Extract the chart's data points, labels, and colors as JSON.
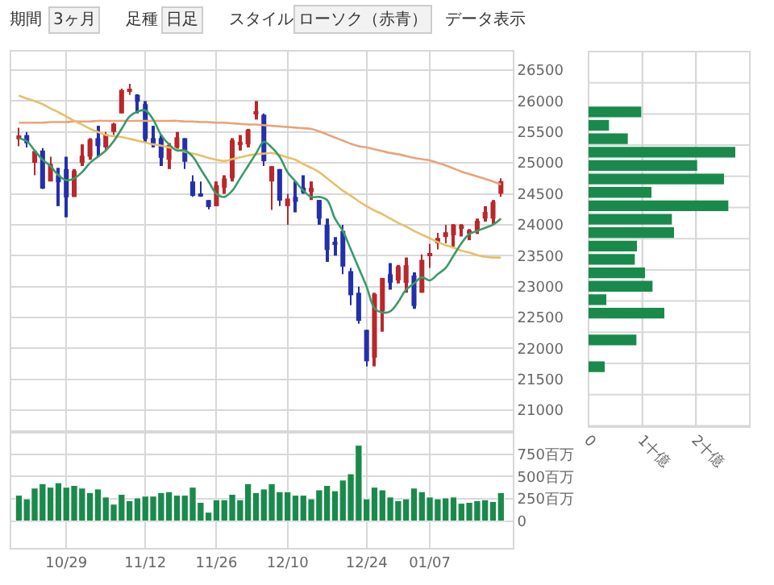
{
  "chart_data": [
    {
      "type": "candlestick",
      "annotations": [
        "期間",
        "3ヶ月",
        "足種",
        "日足",
        "スタイル",
        "ローソク（赤青）",
        "データ表示"
      ],
      "categories": [
        null,
        null,
        null,
        null,
        null,
        null,
        null,
        null,
        null,
        null,
        null,
        null,
        null,
        null,
        null,
        null,
        null,
        null,
        null,
        null,
        null,
        null,
        null,
        null,
        null,
        null,
        null,
        null,
        null,
        null,
        null,
        null,
        null,
        null,
        null,
        null,
        null,
        null,
        null,
        null,
        null,
        null,
        null,
        null,
        null,
        null,
        null,
        null,
        null,
        null,
        null,
        null,
        null,
        null,
        null,
        null,
        null,
        null,
        null,
        null,
        null,
        null
      ],
      "ylim": [
        20650,
        26800
      ],
      "yticks": [
        21000,
        21500,
        22000,
        22500,
        23000,
        23500,
        24000,
        24500,
        25000,
        25500,
        26000,
        26500
      ],
      "grid": true,
      "tick_labels": "y",
      "ohlc": [
        [
          25380,
          25570,
          25270,
          25444
        ],
        [
          25450,
          25500,
          25250,
          25317
        ],
        [
          25000,
          25200,
          24800,
          25191
        ],
        [
          25200,
          25240,
          24580,
          24583
        ],
        [
          24700,
          25100,
          24700,
          24985
        ],
        [
          24800,
          24920,
          24300,
          24688
        ],
        [
          24900,
          25100,
          24120,
          24443
        ],
        [
          24450,
          24900,
          24450,
          24874
        ],
        [
          25000,
          25300,
          24950,
          25116
        ],
        [
          25100,
          25400,
          25050,
          25380
        ],
        [
          25400,
          25600,
          25100,
          25271
        ],
        [
          25250,
          25500,
          25200,
          25462
        ],
        [
          25500,
          25650,
          25450,
          25636
        ],
        [
          25800,
          26200,
          25800,
          26181
        ],
        [
          26150,
          26280,
          26100,
          26191
        ],
        [
          26100,
          26110,
          25800,
          25989
        ],
        [
          25950,
          26000,
          25330,
          25387
        ],
        [
          25400,
          25600,
          25250,
          25286
        ],
        [
          25400,
          25450,
          24950,
          25081
        ],
        [
          25050,
          25320,
          24900,
          25290
        ],
        [
          25250,
          25500,
          25200,
          25413
        ],
        [
          25400,
          25400,
          24900,
          25018
        ],
        [
          24700,
          24800,
          24450,
          24466
        ],
        [
          24500,
          24700,
          24450,
          24464
        ],
        [
          24400,
          24400,
          24250,
          24286
        ],
        [
          24300,
          24700,
          24300,
          24640
        ],
        [
          24600,
          24800,
          24500,
          24749
        ],
        [
          24750,
          25400,
          24700,
          25366
        ],
        [
          25300,
          25450,
          25200,
          25339
        ],
        [
          25300,
          25550,
          25250,
          25538
        ],
        [
          25800,
          26000,
          25700,
          25826
        ],
        [
          25780,
          25800,
          24950,
          25027
        ],
        [
          24700,
          24950,
          24240,
          24947
        ],
        [
          24900,
          24900,
          24300,
          24389
        ],
        [
          24300,
          24500,
          24000,
          24423
        ],
        [
          24450,
          24700,
          24200,
          24370
        ],
        [
          24600,
          24800,
          24500,
          24527
        ],
        [
          24550,
          24700,
          24400,
          24597
        ],
        [
          24400,
          24400,
          24000,
          24100
        ],
        [
          24000,
          24100,
          23400,
          23592
        ],
        [
          23700,
          23800,
          23500,
          23675
        ],
        [
          23900,
          24000,
          23200,
          23323
        ],
        [
          23250,
          23300,
          22700,
          22859
        ],
        [
          22900,
          23000,
          22400,
          22445
        ],
        [
          22300,
          22300,
          21710,
          21792
        ],
        [
          21850,
          22900,
          21710,
          22878
        ],
        [
          22600,
          23140,
          22270,
          23138
        ],
        [
          23200,
          23380,
          22950,
          23062
        ],
        [
          23100,
          23350,
          23050,
          23327
        ],
        [
          23060,
          23470,
          22900,
          23346
        ],
        [
          23180,
          23230,
          22640,
          22686
        ],
        [
          22900,
          23520,
          22900,
          23433
        ],
        [
          23500,
          23690,
          23300,
          23531
        ],
        [
          23700,
          23870,
          23600,
          23787
        ],
        [
          23800,
          24000,
          23700,
          23879
        ],
        [
          23830,
          24010,
          23630,
          24001
        ],
        [
          23950,
          24010,
          23810,
          23996
        ],
        [
          23870,
          23930,
          23750,
          23910
        ],
        [
          23900,
          24100,
          23850,
          24065
        ],
        [
          24100,
          24300,
          24050,
          24207
        ],
        [
          24100,
          24400,
          24000,
          24370
        ],
        [
          24500,
          24750,
          24450,
          24706
        ]
      ],
      "colors": [
        "#b8282c",
        "#2430a8",
        "#b8282c",
        "#2430a8",
        "#b8282c",
        "#2430a8",
        "#2430a8",
        "#b8282c",
        "#b8282c",
        "#b8282c",
        "#2430a8",
        "#b8282c",
        "#b8282c",
        "#b8282c",
        "#b8282c",
        "#2430a8",
        "#2430a8",
        "#2430a8",
        "#2430a8",
        "#b8282c",
        "#b8282c",
        "#2430a8",
        "#2430a8",
        "#2430a8",
        "#2430a8",
        "#b8282c",
        "#b8282c",
        "#b8282c",
        "#b8282c",
        "#b8282c",
        "#b8282c",
        "#2430a8",
        "#b8282c",
        "#2430a8",
        "#b8282c",
        "#2430a8",
        "#2430a8",
        "#b8282c",
        "#2430a8",
        "#2430a8",
        "#2430a8",
        "#2430a8",
        "#2430a8",
        "#2430a8",
        "#2430a8",
        "#b8282c",
        "#b8282c",
        "#2430a8",
        "#b8282c",
        "#b8282c",
        "#2430a8",
        "#b8282c",
        "#b8282c",
        "#b8282c",
        "#b8282c",
        "#b8282c",
        "#b8282c",
        "#b8282c",
        "#b8282c",
        "#b8282c",
        "#b8282c",
        "#b8282c"
      ],
      "series": [
        {
          "type": "line",
          "color": "#e8a47a",
          "values": [
            25650,
            25650,
            25650,
            25650,
            25660,
            25660,
            25660,
            25670,
            25670,
            25670,
            25680,
            25680,
            25680,
            25680,
            25680,
            25680,
            25680,
            25680,
            25680,
            25680,
            25680,
            25670,
            25670,
            25660,
            25660,
            25650,
            25650,
            25640,
            25630,
            25620,
            25620,
            25610,
            25600,
            25590,
            25580,
            25570,
            25560,
            25550,
            25510,
            25460,
            25410,
            25360,
            25310,
            25270,
            25250,
            25220,
            25190,
            25160,
            25140,
            25110,
            25080,
            25060,
            25040,
            25000,
            24960,
            24910,
            24860,
            24820,
            24780,
            24740,
            24700,
            24650
          ]
        },
        {
          "type": "line",
          "color": "#e6c068",
          "values": [
            26090,
            26040,
            26000,
            25950,
            25880,
            25820,
            25750,
            25680,
            25620,
            25550,
            25500,
            25450,
            25430,
            25420,
            25390,
            25360,
            25330,
            25300,
            25280,
            25250,
            25220,
            25180,
            25150,
            25120,
            25080,
            25050,
            25030,
            25060,
            25090,
            25120,
            25140,
            25150,
            25160,
            25130,
            25090,
            25050,
            24980,
            24920,
            24850,
            24750,
            24650,
            24550,
            24470,
            24380,
            24300,
            24230,
            24170,
            24100,
            24030,
            23970,
            23900,
            23840,
            23780,
            23720,
            23670,
            23630,
            23580,
            23550,
            23510,
            23480,
            23470,
            23470
          ]
        },
        {
          "type": "line",
          "color": "#3a9a6a",
          "values": [
            25400,
            25350,
            25200,
            25050,
            24950,
            24800,
            24720,
            24750,
            24850,
            25000,
            25100,
            25200,
            25350,
            25550,
            25750,
            25830,
            25850,
            25700,
            25450,
            25300,
            25200,
            25200,
            25100,
            24900,
            24700,
            24500,
            24450,
            24550,
            24750,
            24950,
            25150,
            25340,
            25250,
            25100,
            24850,
            24700,
            24550,
            24450,
            24450,
            24400,
            24100,
            23900,
            23600,
            23300,
            23000,
            22650,
            22580,
            22600,
            22750,
            22950,
            23050,
            23150,
            23100,
            23200,
            23300,
            23500,
            23700,
            23850,
            23900,
            23950,
            24000,
            24100
          ]
        }
      ]
    },
    {
      "type": "bar",
      "categories": [
        null,
        null,
        null,
        null,
        null,
        null,
        "10/29",
        null,
        null,
        null,
        null,
        null,
        null,
        null,
        null,
        null,
        "11/12",
        null,
        null,
        null,
        null,
        null,
        null,
        null,
        null,
        "11/26",
        null,
        null,
        null,
        null,
        null,
        null,
        null,
        null,
        "12/10",
        null,
        null,
        null,
        null,
        null,
        null,
        null,
        null,
        null,
        "12/24",
        null,
        null,
        null,
        null,
        null,
        null,
        null,
        "01/07",
        null,
        null,
        null,
        null,
        null,
        null,
        null,
        null,
        null
      ],
      "values": [
        290,
        250,
        370,
        420,
        380,
        430,
        380,
        400,
        370,
        320,
        360,
        270,
        190,
        300,
        230,
        260,
        280,
        280,
        320,
        330,
        290,
        290,
        380,
        210,
        100,
        240,
        240,
        300,
        240,
        420,
        320,
        360,
        420,
        330,
        330,
        290,
        290,
        250,
        350,
        400,
        340,
        460,
        530,
        850,
        250,
        380,
        350,
        270,
        230,
        250,
        370,
        330,
        270,
        250,
        260,
        270,
        200,
        210,
        230,
        240,
        220,
        320
      ],
      "color": "#1a8a4c",
      "ylim": [
        -300,
        1000
      ],
      "yticks": [
        0,
        {
          "value": 250,
          "label": "250百万"
        },
        {
          "value": 500,
          "label": "500百万"
        },
        {
          "value": 750,
          "label": "750百万"
        }
      ],
      "grid": true
    },
    {
      "type": "bar",
      "orientation": "horizontal",
      "categories": [
        null,
        null,
        null,
        null,
        null,
        null,
        null,
        null,
        null,
        null,
        null,
        null,
        null,
        null,
        null,
        null,
        null,
        null,
        null,
        null,
        null,
        null,
        null,
        null,
        null,
        null,
        null,
        null
      ],
      "values": [
        null,
        null,
        null,
        null,
        0.98,
        0.38,
        0.73,
        2.73,
        2.02,
        2.52,
        1.17,
        2.6,
        1.55,
        1.59,
        0.9,
        0.86,
        1.05,
        1.19,
        0.33,
        1.41,
        null,
        0.89,
        null,
        0.3,
        null,
        null,
        null,
        null
      ],
      "color": "#1a8a4c",
      "xlim": [
        0,
        3
      ],
      "xticks": [
        0,
        {
          "value": 1,
          "label": "1十億"
        },
        {
          "value": 2,
          "label": "2十億"
        },
        {
          "value": 3,
          "label": null
        }
      ],
      "grid": true,
      "tick_labels": "x"
    }
  ]
}
